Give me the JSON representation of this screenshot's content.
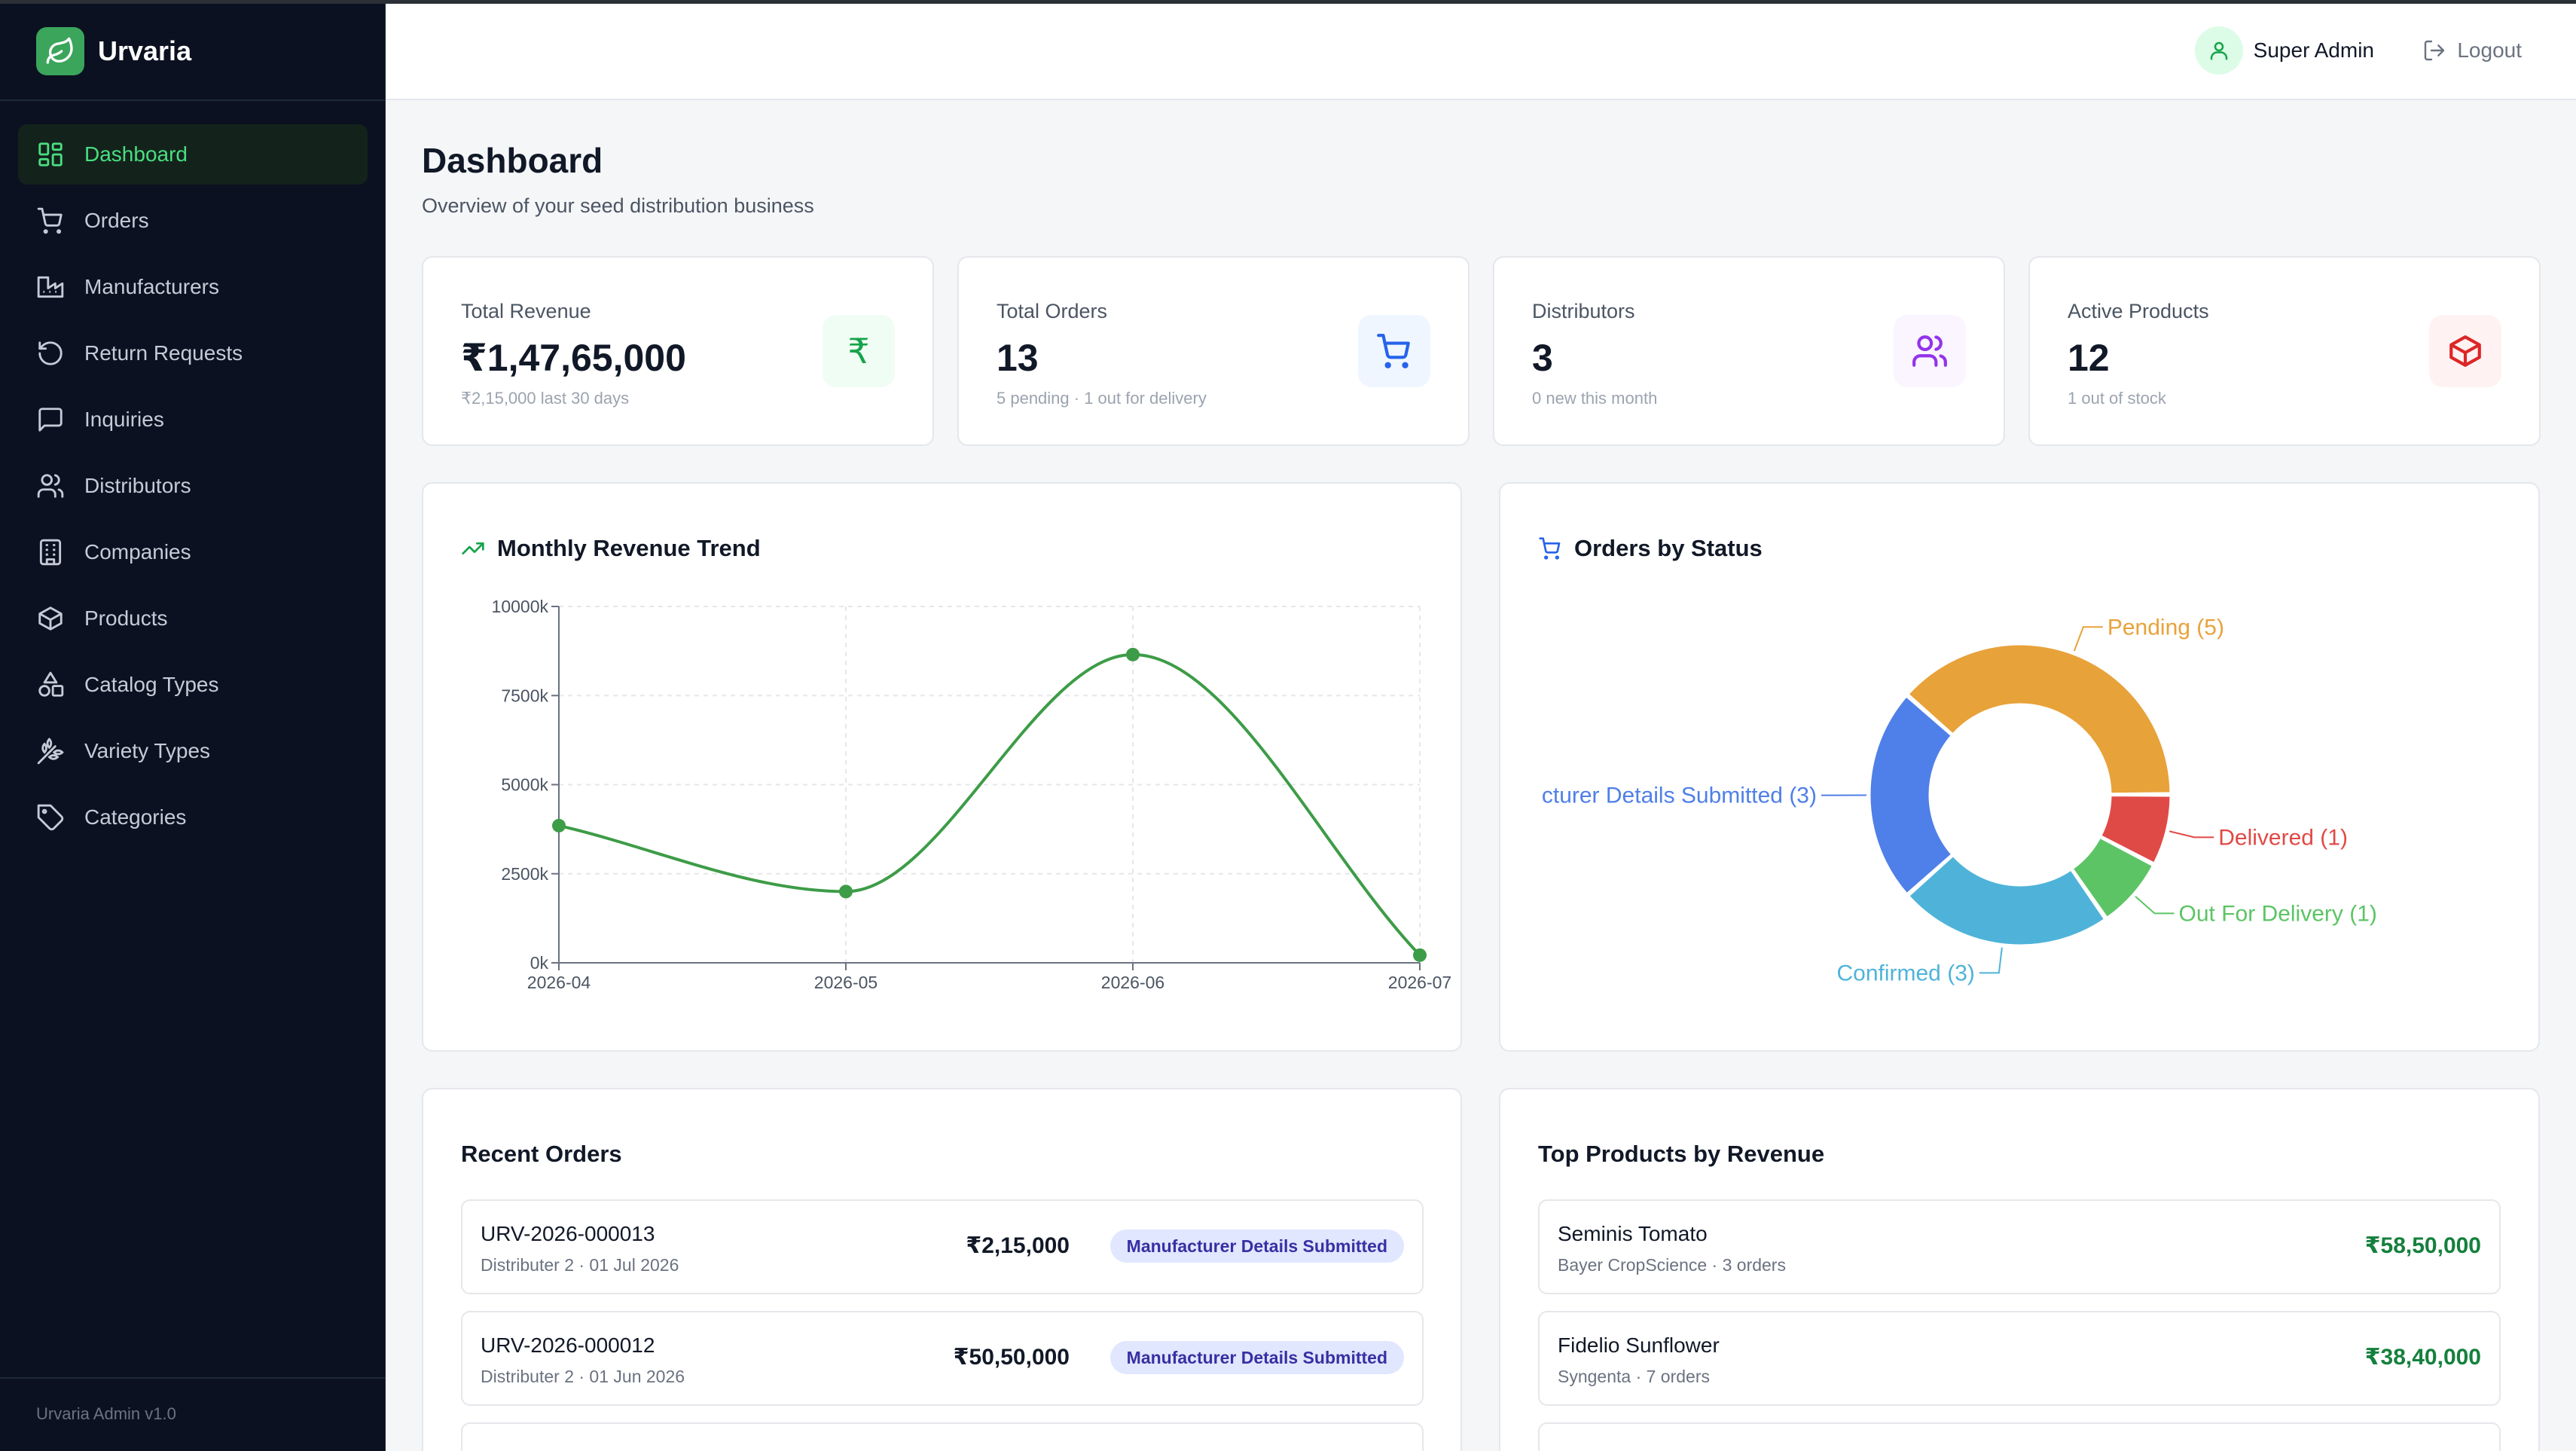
{
  "app": {
    "name": "Urvaria",
    "version": "Urvaria Admin v1.0",
    "accent": "#3aa55b"
  },
  "sidebar": {
    "items": [
      {
        "label": "Dashboard",
        "icon": "dashboard-grid-icon",
        "active": true
      },
      {
        "label": "Orders",
        "icon": "cart-icon"
      },
      {
        "label": "Manufacturers",
        "icon": "factory-icon"
      },
      {
        "label": "Return Requests",
        "icon": "rotate-ccw-icon"
      },
      {
        "label": "Inquiries",
        "icon": "message-square-icon"
      },
      {
        "label": "Distributors",
        "icon": "users-icon"
      },
      {
        "label": "Companies",
        "icon": "building-icon"
      },
      {
        "label": "Products",
        "icon": "package-icon"
      },
      {
        "label": "Catalog Types",
        "icon": "shapes-icon"
      },
      {
        "label": "Variety Types",
        "icon": "wheat-icon"
      },
      {
        "label": "Categories",
        "icon": "tag-icon"
      }
    ]
  },
  "header": {
    "user": "Super Admin",
    "logout": "Logout"
  },
  "page": {
    "title": "Dashboard",
    "subtitle": "Overview of your seed distribution business"
  },
  "stats": [
    {
      "label": "Total Revenue",
      "value": "₹1,47,65,000",
      "note": "₹2,15,000 last 30 days",
      "icon": "rupee-icon",
      "color": "#16a34a",
      "bg": "#f0fdf4"
    },
    {
      "label": "Total Orders",
      "value": "13",
      "note": "5 pending · 1 out for delivery",
      "icon": "cart-icon",
      "color": "#2563eb",
      "bg": "#eff6ff"
    },
    {
      "label": "Distributors",
      "value": "3",
      "note": "0 new this month",
      "icon": "users-icon",
      "color": "#9333ea",
      "bg": "#faf5ff"
    },
    {
      "label": "Active Products",
      "value": "12",
      "note": "1 out of stock",
      "icon": "package-icon",
      "color": "#dc2626",
      "bg": "#fef2f2"
    }
  ],
  "revenue_card": {
    "title": "Monthly Revenue Trend",
    "icon": "trending-up-icon"
  },
  "status_card": {
    "title": "Orders by Status",
    "icon": "cart-icon"
  },
  "recent_orders": {
    "title": "Recent Orders",
    "rows": [
      {
        "id": "URV-2026-000013",
        "meta": "Distributer 2 · 01 Jul 2026",
        "amount": "₹2,15,000",
        "status": "Manufacturer Details Submitted"
      },
      {
        "id": "URV-2026-000012",
        "meta": "Distributer 2 · 01 Jun 2026",
        "amount": "₹50,50,000",
        "status": "Manufacturer Details Submitted"
      }
    ]
  },
  "top_products": {
    "title": "Top Products by Revenue",
    "rows": [
      {
        "name": "Seminis Tomato",
        "meta": "Bayer CropScience · 3 orders",
        "amount": "₹58,50,000"
      },
      {
        "name": "Fidelio Sunflower",
        "meta": "Syngenta · 7 orders",
        "amount": "₹38,40,000"
      }
    ]
  },
  "chart_data": [
    {
      "type": "line",
      "x": [
        "2026-04",
        "2026-05",
        "2026-06",
        "2026-07"
      ],
      "series": [
        {
          "values": [
            3850,
            2000,
            8650,
            215
          ],
          "color": "#3d9c47"
        }
      ],
      "yticks": [
        "0k",
        "2500k",
        "5000k",
        "7500k",
        "10000k"
      ],
      "ylim": [
        0,
        10000
      ],
      "grid": true
    },
    {
      "type": "pie",
      "donut": true,
      "slices": [
        {
          "label": "Pending (5)",
          "value": 5,
          "color": "#e8a23a"
        },
        {
          "label": "Delivered (1)",
          "value": 1,
          "color": "#e04a46"
        },
        {
          "label": "Out For Delivery (1)",
          "value": 1,
          "color": "#5cc465"
        },
        {
          "label": "Confirmed (3)",
          "value": 3,
          "color": "#4fb3d9"
        },
        {
          "label": "cturer Details Submitted (3)",
          "value": 3,
          "color": "#4f7fe8"
        }
      ]
    }
  ]
}
